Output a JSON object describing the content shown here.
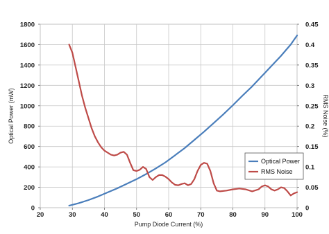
{
  "chart_data": {
    "type": "line",
    "xlabel": "Pump Diode Current (%)",
    "ylabel": "Optical Power (mW)",
    "y2label": "RMS Noise (%)",
    "xlim": [
      20,
      100
    ],
    "ylim": [
      0,
      1800
    ],
    "y2lim": [
      0,
      0.45
    ],
    "x_ticks": [
      20,
      30,
      40,
      50,
      60,
      70,
      80,
      90,
      100
    ],
    "y_ticks": [
      0,
      200,
      400,
      600,
      800,
      1000,
      1200,
      1400,
      1600,
      1800
    ],
    "y2_ticks": [
      "0",
      "0.05",
      "0.1",
      "0.15",
      "0.2",
      "0.25",
      "0.3",
      "0.35",
      "0.4",
      "0.45"
    ],
    "grid": true,
    "legend_position": "right",
    "series": [
      {
        "name": "Optical Power",
        "axis": "left",
        "color": "#4a7ebb",
        "points": [
          [
            29,
            20
          ],
          [
            32,
            45
          ],
          [
            35,
            75
          ],
          [
            38,
            110
          ],
          [
            41,
            150
          ],
          [
            44,
            190
          ],
          [
            47,
            235
          ],
          [
            50,
            280
          ],
          [
            53,
            330
          ],
          [
            56,
            385
          ],
          [
            59,
            445
          ],
          [
            62,
            515
          ],
          [
            65,
            585
          ],
          [
            68,
            665
          ],
          [
            71,
            745
          ],
          [
            74,
            830
          ],
          [
            77,
            915
          ],
          [
            80,
            1005
          ],
          [
            83,
            1100
          ],
          [
            86,
            1190
          ],
          [
            89,
            1290
          ],
          [
            92,
            1390
          ],
          [
            95,
            1490
          ],
          [
            98,
            1600
          ],
          [
            100,
            1690
          ]
        ]
      },
      {
        "name": "RMS Noise",
        "axis": "right",
        "color": "#be4b48",
        "points": [
          [
            29,
            0.4
          ],
          [
            30,
            0.38
          ],
          [
            31,
            0.345
          ],
          [
            32,
            0.31
          ],
          [
            33,
            0.275
          ],
          [
            34,
            0.245
          ],
          [
            35,
            0.22
          ],
          [
            36,
            0.195
          ],
          [
            37,
            0.175
          ],
          [
            38,
            0.16
          ],
          [
            39,
            0.148
          ],
          [
            40,
            0.14
          ],
          [
            41,
            0.135
          ],
          [
            42,
            0.13
          ],
          [
            43,
            0.128
          ],
          [
            44,
            0.13
          ],
          [
            45,
            0.135
          ],
          [
            46,
            0.137
          ],
          [
            47,
            0.13
          ],
          [
            48,
            0.11
          ],
          [
            49,
            0.092
          ],
          [
            50,
            0.09
          ],
          [
            51,
            0.093
          ],
          [
            52,
            0.1
          ],
          [
            53,
            0.095
          ],
          [
            54,
            0.075
          ],
          [
            55,
            0.068
          ],
          [
            56,
            0.075
          ],
          [
            57,
            0.08
          ],
          [
            58,
            0.08
          ],
          [
            59,
            0.076
          ],
          [
            60,
            0.07
          ],
          [
            61,
            0.062
          ],
          [
            62,
            0.056
          ],
          [
            63,
            0.055
          ],
          [
            64,
            0.058
          ],
          [
            65,
            0.06
          ],
          [
            66,
            0.055
          ],
          [
            67,
            0.058
          ],
          [
            68,
            0.07
          ],
          [
            69,
            0.09
          ],
          [
            70,
            0.105
          ],
          [
            71,
            0.11
          ],
          [
            72,
            0.108
          ],
          [
            73,
            0.09
          ],
          [
            74,
            0.06
          ],
          [
            75,
            0.042
          ],
          [
            76,
            0.04
          ],
          [
            78,
            0.042
          ],
          [
            80,
            0.045
          ],
          [
            82,
            0.047
          ],
          [
            84,
            0.045
          ],
          [
            86,
            0.04
          ],
          [
            88,
            0.045
          ],
          [
            89,
            0.052
          ],
          [
            90,
            0.055
          ],
          [
            91,
            0.052
          ],
          [
            92,
            0.045
          ],
          [
            93,
            0.042
          ],
          [
            94,
            0.045
          ],
          [
            95,
            0.05
          ],
          [
            96,
            0.048
          ],
          [
            97,
            0.04
          ],
          [
            98,
            0.03
          ],
          [
            99,
            0.035
          ],
          [
            100,
            0.038
          ]
        ]
      }
    ]
  }
}
